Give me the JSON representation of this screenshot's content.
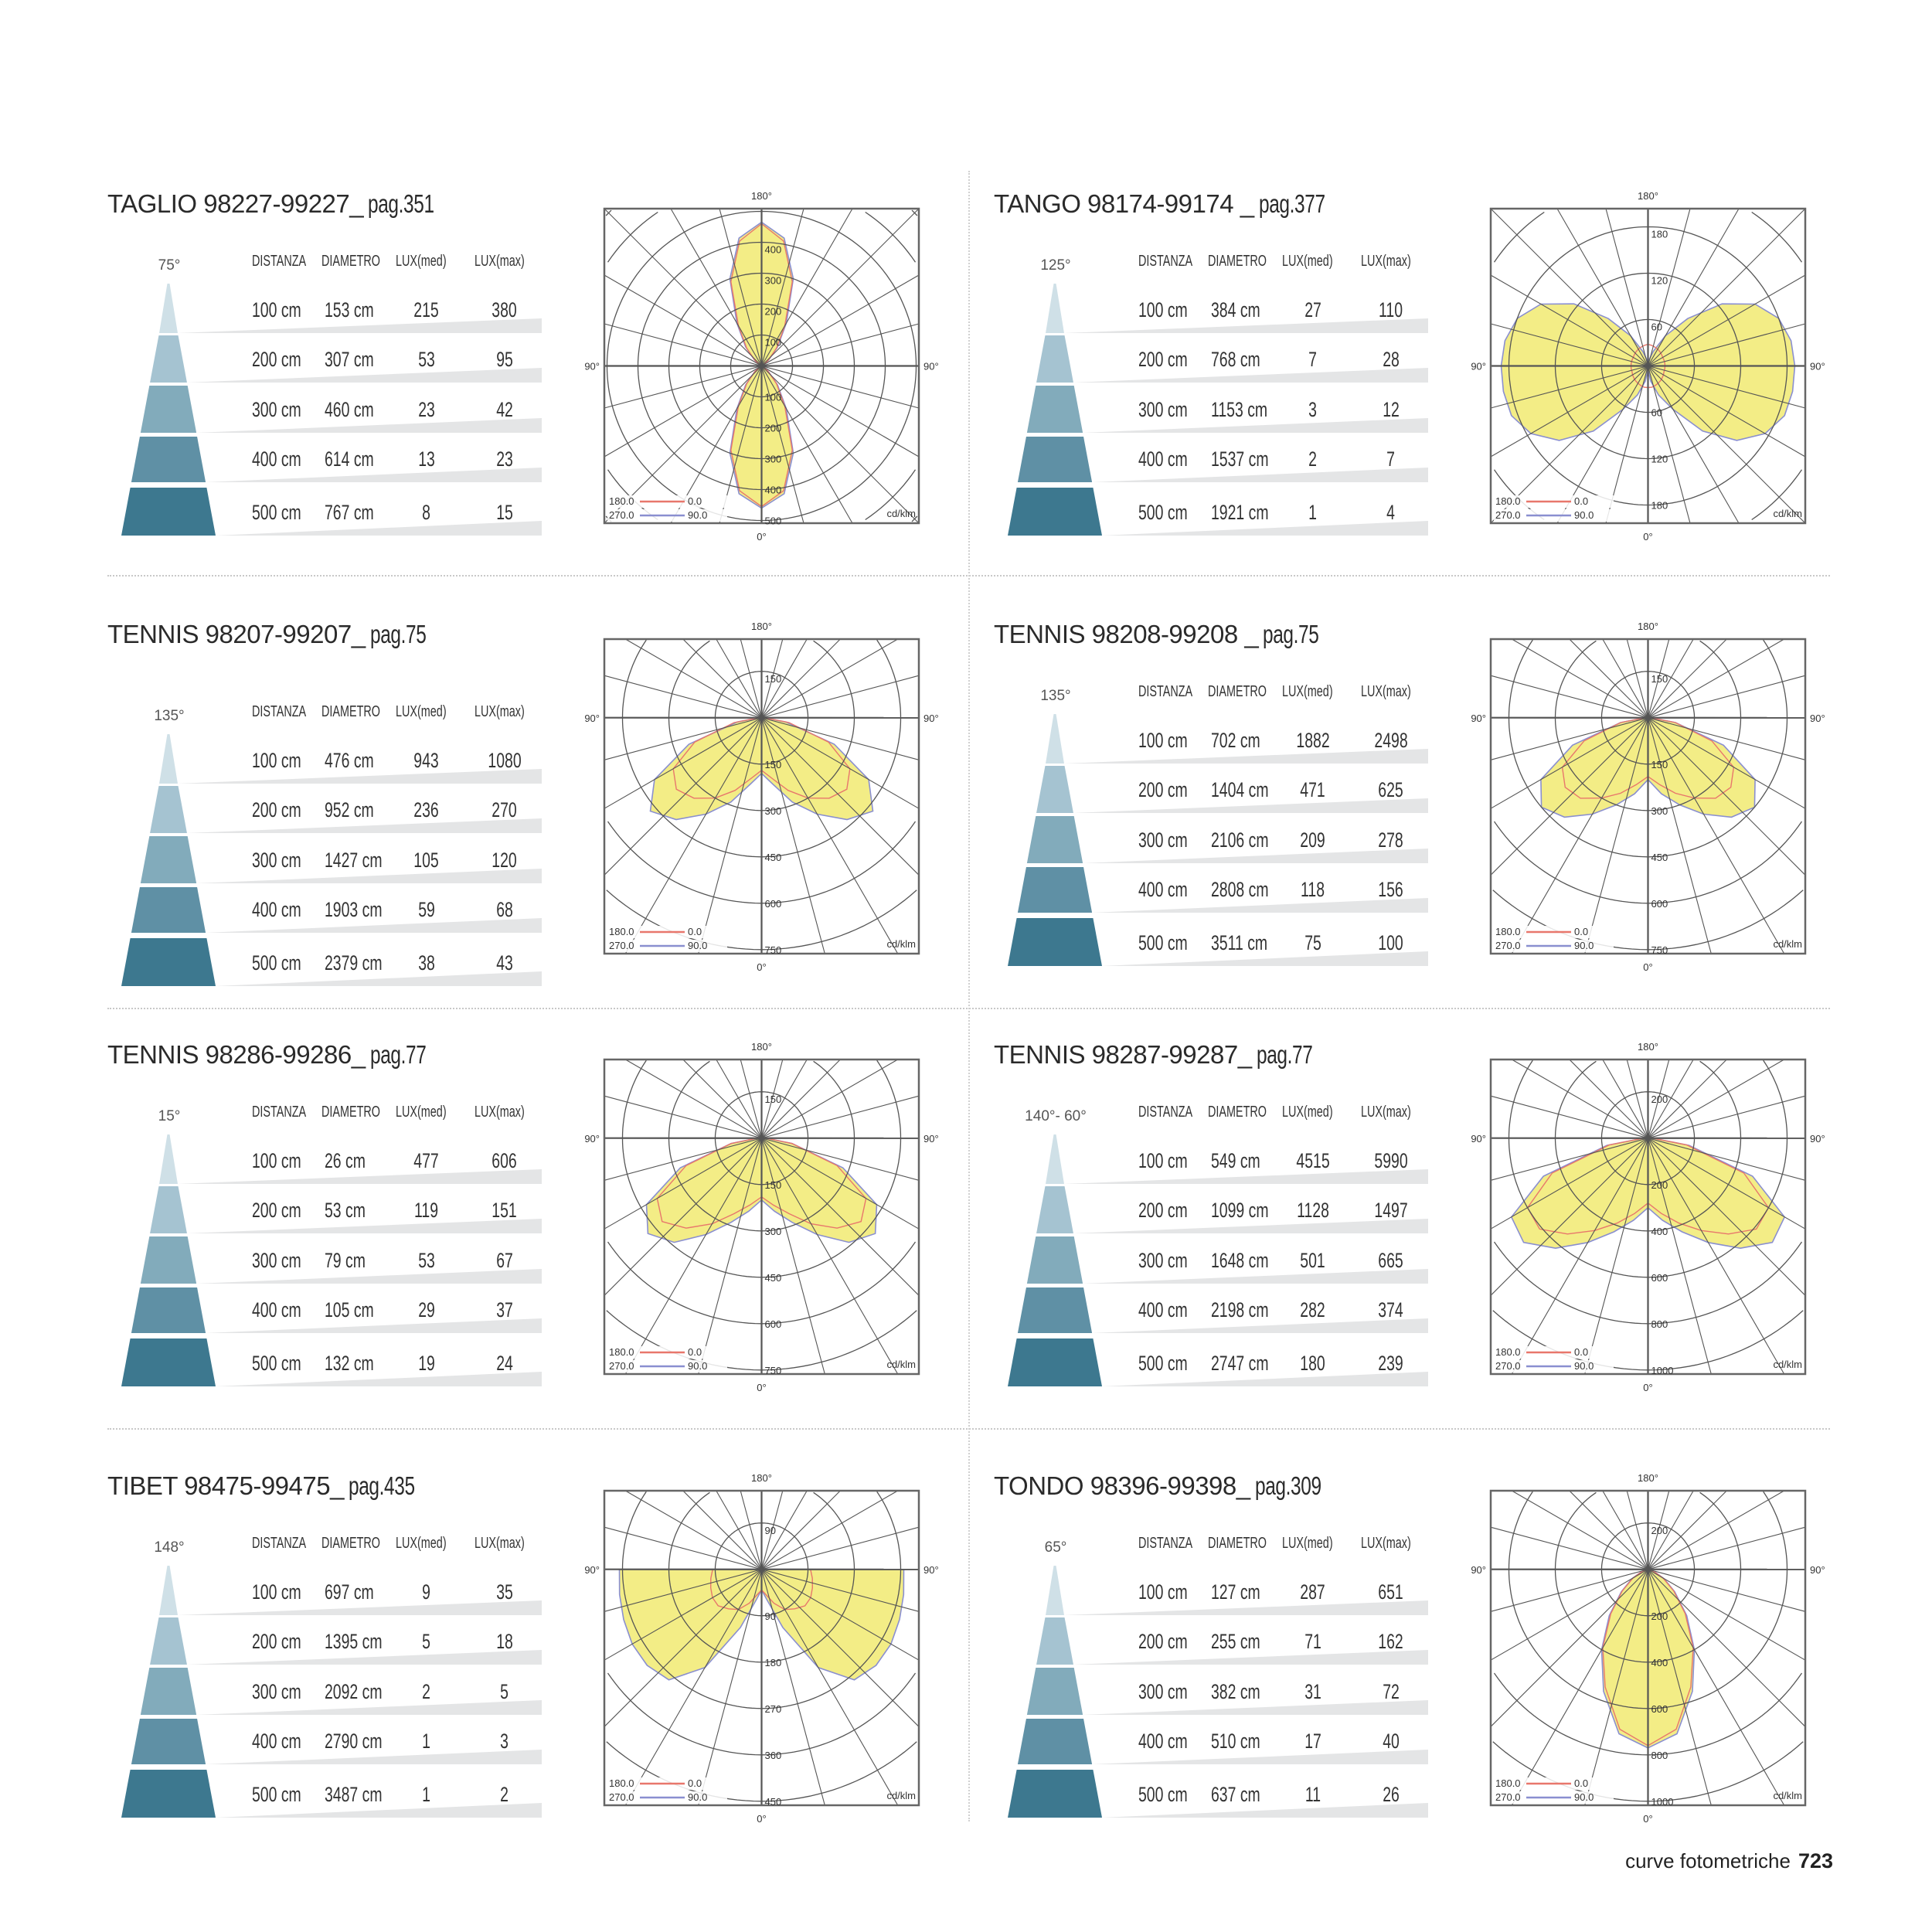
{
  "table_headers": [
    "DISTANZA",
    "DIAMETRO",
    "LUX(med)",
    "LUX(max)"
  ],
  "footer": {
    "section": "curve fotometriche",
    "page_number": "723"
  },
  "panels": [
    {
      "title": "TAGLIO 98227-99227_",
      "page": "pag.351",
      "beam_angle": "75°",
      "rows": [
        [
          "100 cm",
          "153 cm",
          "215",
          "380"
        ],
        [
          "200 cm",
          "307 cm",
          "53",
          "95"
        ],
        [
          "300 cm",
          "460 cm",
          "23",
          "42"
        ],
        [
          "400 cm",
          "614 cm",
          "13",
          "23"
        ],
        [
          "500 cm",
          "767 cm",
          "8",
          "15"
        ]
      ]
    },
    {
      "title": "TANGO 98174-99174 _",
      "page": "pag.377",
      "beam_angle": "125°",
      "rows": [
        [
          "100 cm",
          "384 cm",
          "27",
          "110"
        ],
        [
          "200 cm",
          "768 cm",
          "7",
          "28"
        ],
        [
          "300 cm",
          "1153 cm",
          "3",
          "12"
        ],
        [
          "400 cm",
          "1537 cm",
          "2",
          "7"
        ],
        [
          "500 cm",
          "1921 cm",
          "1",
          "4"
        ]
      ]
    },
    {
      "title": "TENNIS 98207-99207_",
      "page": "pag.75",
      "beam_angle": "135°",
      "rows": [
        [
          "100 cm",
          "476 cm",
          "943",
          "1080"
        ],
        [
          "200 cm",
          "952 cm",
          "236",
          "270"
        ],
        [
          "300 cm",
          "1427 cm",
          "105",
          "120"
        ],
        [
          "400 cm",
          "1903 cm",
          "59",
          "68"
        ],
        [
          "500 cm",
          "2379 cm",
          "38",
          "43"
        ]
      ]
    },
    {
      "title": "TENNIS 98208-99208 _",
      "page": "pag.75",
      "beam_angle": "135°",
      "rows": [
        [
          "100 cm",
          "702 cm",
          "1882",
          "2498"
        ],
        [
          "200 cm",
          "1404 cm",
          "471",
          "625"
        ],
        [
          "300 cm",
          "2106 cm",
          "209",
          "278"
        ],
        [
          "400 cm",
          "2808 cm",
          "118",
          "156"
        ],
        [
          "500 cm",
          "3511 cm",
          "75",
          "100"
        ]
      ]
    },
    {
      "title": "TENNIS 98286-99286_",
      "page": "pag.77",
      "beam_angle": "15°",
      "rows": [
        [
          "100 cm",
          "26 cm",
          "477",
          "606"
        ],
        [
          "200 cm",
          "53 cm",
          "119",
          "151"
        ],
        [
          "300 cm",
          "79 cm",
          "53",
          "67"
        ],
        [
          "400 cm",
          "105 cm",
          "29",
          "37"
        ],
        [
          "500 cm",
          "132 cm",
          "19",
          "24"
        ]
      ]
    },
    {
      "title": "TENNIS 98287-99287_",
      "page": "pag.77",
      "beam_angle": "140°- 60°",
      "rows": [
        [
          "100 cm",
          "549 cm",
          "4515",
          "5990"
        ],
        [
          "200 cm",
          "1099 cm",
          "1128",
          "1497"
        ],
        [
          "300 cm",
          "1648 cm",
          "501",
          "665"
        ],
        [
          "400 cm",
          "2198 cm",
          "282",
          "374"
        ],
        [
          "500 cm",
          "2747 cm",
          "180",
          "239"
        ]
      ]
    },
    {
      "title": "TIBET 98475-99475_",
      "page": "pag.435",
      "beam_angle": "148°",
      "rows": [
        [
          "100 cm",
          "697 cm",
          "9",
          "35"
        ],
        [
          "200 cm",
          "1395 cm",
          "5",
          "18"
        ],
        [
          "300 cm",
          "2092 cm",
          "2",
          "5"
        ],
        [
          "400 cm",
          "2790 cm",
          "1",
          "3"
        ],
        [
          "500 cm",
          "3487 cm",
          "1",
          "2"
        ]
      ]
    },
    {
      "title": "TONDO 98396-99398_",
      "page": "pag.309",
      "beam_angle": "65°",
      "rows": [
        [
          "100 cm",
          "127 cm",
          "287",
          "651"
        ],
        [
          "200 cm",
          "255 cm",
          "71",
          "162"
        ],
        [
          "300 cm",
          "382 cm",
          "31",
          "72"
        ],
        [
          "400 cm",
          "510 cm",
          "17",
          "40"
        ],
        [
          "500 cm",
          "637 cm",
          "11",
          "26"
        ]
      ]
    }
  ],
  "colors": {
    "cone": [
      "#cfe0e7",
      "#a5c3d1",
      "#82abbb",
      "#5f90a5",
      "#3d788f"
    ],
    "wedge": "#e4e5e6",
    "fill": "#f2ec7c",
    "c0": "#e8776c",
    "c90": "#8a8fd0",
    "grid": "#555555"
  },
  "chart_data": [
    {
      "type": "polar",
      "title": "TAGLIO 98227-99227",
      "unit": "cd/klm",
      "ring_values": [
        100,
        200,
        300,
        400,
        500
      ],
      "axis_labels": {
        "top": "180°",
        "bottom": "0°",
        "left": "90°",
        "right": "90°"
      },
      "legend": [
        {
          "left": "180.0",
          "right": "0.0"
        },
        {
          "left": "270.0",
          "right": "90.0"
        }
      ],
      "angles": [
        0,
        10,
        20,
        30,
        40,
        50,
        60,
        70,
        80,
        90,
        100,
        110,
        120,
        130,
        140,
        150,
        160,
        170,
        180
      ],
      "c90": [
        460,
        420,
        300,
        160,
        80,
        30,
        10,
        4,
        1,
        0,
        1,
        4,
        10,
        30,
        80,
        160,
        300,
        420,
        465
      ],
      "c0": [
        455,
        410,
        290,
        150,
        75,
        28,
        9,
        4,
        1,
        0,
        1,
        4,
        9,
        28,
        75,
        150,
        290,
        410,
        460
      ]
    },
    {
      "type": "polar",
      "title": "TANGO 98174-99174",
      "unit": "cd/klm",
      "ring_values": [
        60,
        120,
        180
      ],
      "axis_labels": {
        "top": "180°",
        "bottom": "0°",
        "left": "90°",
        "right": "90°"
      },
      "legend": [
        {
          "left": "180.0",
          "right": "0.0"
        },
        {
          "left": "270.0",
          "right": "90.0"
        }
      ],
      "angles": [
        0,
        10,
        20,
        30,
        40,
        50,
        60,
        70,
        80,
        90,
        100,
        110,
        120,
        130,
        140,
        150,
        160,
        170,
        180
      ],
      "c90": [
        5,
        20,
        40,
        65,
        110,
        150,
        175,
        188,
        190,
        190,
        188,
        180,
        160,
        125,
        80,
        45,
        20,
        8,
        2
      ],
      "c0": [
        28,
        28,
        27,
        26,
        25,
        24,
        23,
        22,
        22,
        22,
        22,
        22,
        22,
        23,
        24,
        25,
        26,
        27,
        28
      ]
    },
    {
      "type": "polar",
      "title": "TENNIS 98207-99207",
      "unit": "cd/klm",
      "ring_values": [
        150,
        300,
        450,
        600,
        750
      ],
      "axis_labels": {
        "top": "180°",
        "bottom": "0°",
        "left": "90°",
        "right": "90°"
      },
      "legend": [
        {
          "left": "180.0",
          "right": "0.0"
        },
        {
          "left": "270.0",
          "right": "90.0"
        }
      ],
      "angles": [
        0,
        10,
        20,
        30,
        40,
        50,
        60,
        70,
        80,
        90,
        100,
        110,
        120,
        130,
        140,
        150,
        160,
        170,
        180
      ],
      "c90": [
        180,
        220,
        290,
        360,
        430,
        470,
        400,
        250,
        80,
        10,
        0,
        0,
        0,
        0,
        0,
        0,
        0,
        0,
        0
      ],
      "c0": [
        170,
        200,
        250,
        300,
        340,
        360,
        330,
        230,
        90,
        10,
        0,
        0,
        0,
        0,
        0,
        0,
        0,
        0,
        0
      ]
    },
    {
      "type": "polar",
      "title": "TENNIS 98208-99208",
      "unit": "cd/klm",
      "ring_values": [
        150,
        300,
        450,
        600,
        750
      ],
      "axis_labels": {
        "top": "180°",
        "bottom": "0°",
        "left": "90°",
        "right": "90°"
      },
      "legend": [
        {
          "left": "180.0",
          "right": "0.0"
        },
        {
          "left": "270.0",
          "right": "90.0"
        }
      ],
      "angles": [
        0,
        10,
        20,
        30,
        40,
        50,
        60,
        70,
        80,
        90,
        100,
        110,
        120,
        130,
        140,
        150,
        160,
        170,
        180
      ],
      "c90": [
        200,
        250,
        300,
        360,
        420,
        450,
        400,
        260,
        90,
        10,
        0,
        0,
        0,
        0,
        0,
        0,
        0,
        0,
        0
      ],
      "c0": [
        190,
        220,
        260,
        300,
        340,
        350,
        320,
        220,
        90,
        10,
        0,
        0,
        0,
        0,
        0,
        0,
        0,
        0,
        0
      ]
    },
    {
      "type": "polar",
      "title": "TENNIS 98286-99286",
      "unit": "cd/klm",
      "ring_values": [
        150,
        300,
        450,
        600,
        750
      ],
      "axis_labels": {
        "top": "180°",
        "bottom": "0°",
        "left": "90°",
        "right": "90°"
      },
      "legend": [
        {
          "left": "180.0",
          "right": "0.0"
        },
        {
          "left": "270.0",
          "right": "90.0"
        }
      ],
      "angles": [
        0,
        10,
        20,
        30,
        40,
        50,
        60,
        70,
        80,
        90,
        100,
        110,
        120,
        130,
        140,
        150,
        160,
        170,
        180
      ],
      "c90": [
        200,
        240,
        290,
        360,
        440,
        480,
        430,
        280,
        100,
        15,
        0,
        0,
        0,
        0,
        0,
        0,
        0,
        0,
        0
      ],
      "c0": [
        190,
        220,
        260,
        320,
        380,
        420,
        390,
        260,
        100,
        15,
        0,
        0,
        0,
        0,
        0,
        0,
        0,
        0,
        0
      ]
    },
    {
      "type": "polar",
      "title": "TENNIS 98287-99287",
      "unit": "cd/klm",
      "ring_values": [
        200,
        400,
        600,
        800,
        1000
      ],
      "axis_labels": {
        "top": "180°",
        "bottom": "0°",
        "left": "90°",
        "right": "90°"
      },
      "legend": [
        {
          "left": "180.0",
          "right": "0.0"
        },
        {
          "left": "270.0",
          "right": "90.0"
        }
      ],
      "angles": [
        0,
        10,
        20,
        30,
        40,
        50,
        60,
        70,
        80,
        90,
        100,
        110,
        120,
        130,
        140,
        150,
        160,
        170,
        180
      ],
      "c90": [
        300,
        360,
        430,
        520,
        620,
        700,
        680,
        480,
        180,
        20,
        0,
        0,
        0,
        0,
        0,
        0,
        0,
        0,
        0
      ],
      "c0": [
        280,
        330,
        390,
        460,
        540,
        610,
        600,
        440,
        170,
        20,
        0,
        0,
        0,
        0,
        0,
        0,
        0,
        0,
        0
      ]
    },
    {
      "type": "polar",
      "title": "TIBET 98475-99475",
      "unit": "cd/klm",
      "ring_values": [
        90,
        180,
        270,
        360,
        450
      ],
      "axis_labels": {
        "top": "180°",
        "bottom": "0°",
        "left": "90°",
        "right": "90°"
      },
      "legend": [
        {
          "left": "180.0",
          "right": "0.0"
        },
        {
          "left": "270.0",
          "right": "90.0"
        }
      ],
      "angles": [
        0,
        10,
        20,
        30,
        40,
        50,
        60,
        70,
        80,
        90,
        100,
        110,
        120,
        130,
        140,
        150,
        160,
        170,
        180
      ],
      "c90": [
        40,
        60,
        120,
        220,
        280,
        290,
        290,
        285,
        280,
        276,
        0,
        0,
        0,
        0,
        0,
        0,
        0,
        0,
        0
      ],
      "c0": [
        40,
        50,
        70,
        90,
        100,
        110,
        110,
        105,
        100,
        95,
        0,
        0,
        0,
        0,
        0,
        0,
        0,
        0,
        0
      ]
    },
    {
      "type": "polar",
      "title": "TONDO 98396-99398",
      "unit": "cd/klm",
      "ring_values": [
        200,
        400,
        600,
        800,
        1000
      ],
      "axis_labels": {
        "top": "180°",
        "bottom": "0°",
        "left": "90°",
        "right": "90°"
      },
      "legend": [
        {
          "left": "180.0",
          "right": "0.0"
        },
        {
          "left": "270.0",
          "right": "90.0"
        }
      ],
      "angles": [
        0,
        10,
        20,
        30,
        40,
        50,
        60,
        70,
        80,
        90,
        100,
        110,
        120,
        130,
        140,
        150,
        160,
        170,
        180
      ],
      "c90": [
        770,
        720,
        560,
        400,
        260,
        150,
        80,
        30,
        10,
        0,
        0,
        0,
        0,
        0,
        0,
        0,
        0,
        0,
        0
      ],
      "c0": [
        760,
        700,
        540,
        390,
        250,
        145,
        75,
        28,
        10,
        0,
        0,
        0,
        0,
        0,
        0,
        0,
        0,
        0,
        0
      ]
    }
  ]
}
